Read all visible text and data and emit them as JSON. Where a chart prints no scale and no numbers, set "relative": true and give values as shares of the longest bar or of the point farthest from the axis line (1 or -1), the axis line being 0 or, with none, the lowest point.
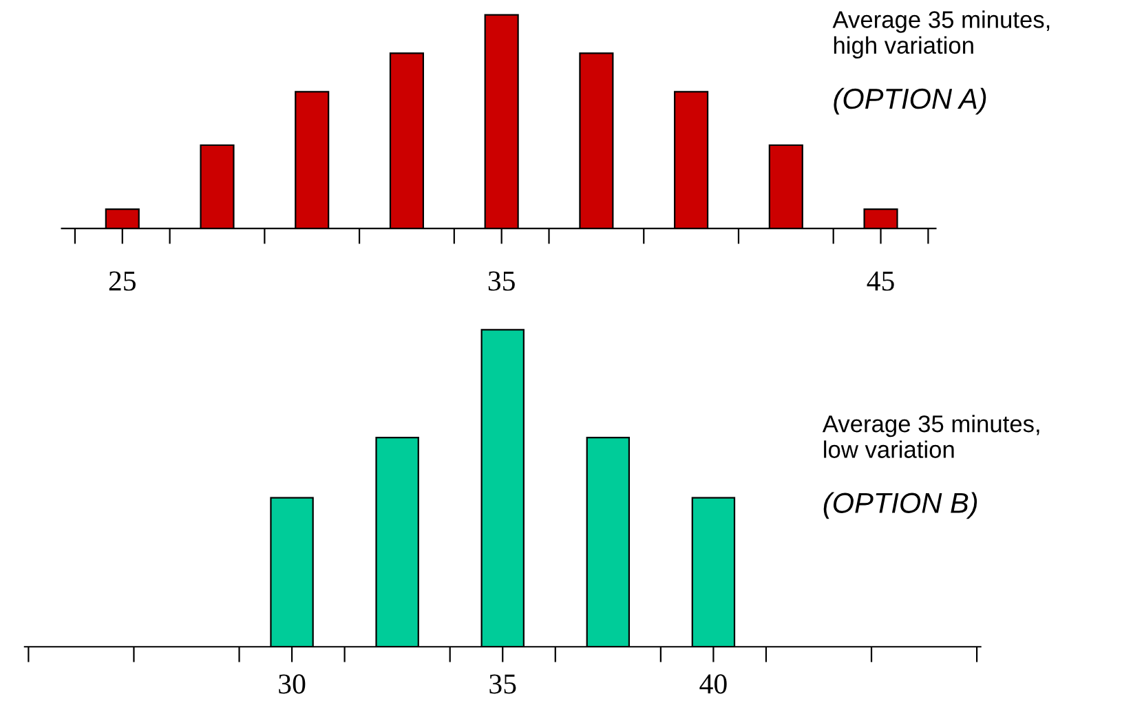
{
  "chart_data": [
    {
      "type": "bar",
      "relative": true,
      "x": [
        25,
        27.5,
        30,
        32.5,
        35,
        37.5,
        40,
        42.5,
        45
      ],
      "values": [
        0.09,
        0.39,
        0.64,
        0.82,
        1,
        0.82,
        0.64,
        0.39,
        0.09
      ],
      "color": "#cc0000",
      "xlim": [
        23.4,
        46.45
      ],
      "xticks": [
        {
          "value": 23.75,
          "label": null
        },
        25,
        {
          "value": 26.25,
          "label": null
        },
        {
          "value": 28.75,
          "label": null
        },
        {
          "value": 31.25,
          "label": null
        },
        {
          "value": 33.75,
          "label": null
        },
        35,
        {
          "value": 36.25,
          "label": null
        },
        {
          "value": 38.75,
          "label": null
        },
        {
          "value": 41.25,
          "label": null
        },
        {
          "value": 43.75,
          "label": null
        },
        45,
        {
          "value": 46.25,
          "label": null
        }
      ],
      "annotations": [
        "Average 35 minutes,\nhigh variation",
        "(OPTION A)"
      ],
      "grid": false,
      "legend": false
    },
    {
      "type": "bar",
      "relative": true,
      "x": [
        30,
        32.5,
        35,
        37.5,
        40
      ],
      "values": [
        0.47,
        0.66,
        1,
        0.66,
        0.47
      ],
      "color": "#00cc99",
      "xlim": [
        23.66,
        46.34
      ],
      "xticks": [
        {
          "value": 23.75,
          "label": null
        },
        {
          "value": 26.25,
          "label": null
        },
        {
          "value": 28.75,
          "label": null
        },
        30,
        {
          "value": 31.25,
          "label": null
        },
        {
          "value": 33.75,
          "label": null
        },
        35,
        {
          "value": 36.25,
          "label": null
        },
        {
          "value": 38.75,
          "label": null
        },
        40,
        {
          "value": 41.25,
          "label": null
        },
        {
          "value": 43.75,
          "label": null
        },
        {
          "value": 46.25,
          "label": null
        }
      ],
      "annotations": [
        "Average 35 minutes,\nlow variation",
        "(OPTION B)"
      ],
      "grid": false,
      "legend": false
    }
  ]
}
